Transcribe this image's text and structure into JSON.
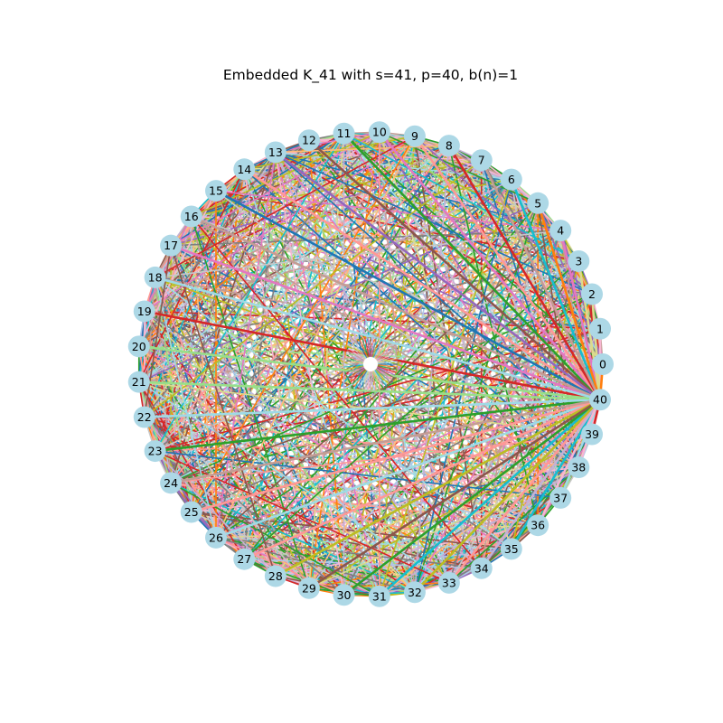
{
  "figure": {
    "title": "Embedded K_41 with s=41, p=40, b(n)=1"
  },
  "graph": {
    "type": "complete-graph",
    "node_count": 41,
    "hub_node": 40,
    "node_fill": "#add8e6",
    "edge_palette": [
      "#1f77b4",
      "#ff7f0e",
      "#2ca02c",
      "#d62728",
      "#9467bd",
      "#8c564b",
      "#e377c2",
      "#7f7f7f",
      "#bcbd22",
      "#17becf",
      "#aec7e8",
      "#ffbb78",
      "#98df8a",
      "#ff9896",
      "#c5b0d5",
      "#c49c94",
      "#f7b6d2",
      "#c7c7c7",
      "#dbdb8d",
      "#9edae5"
    ],
    "nodes": [
      "0",
      "1",
      "2",
      "3",
      "4",
      "5",
      "6",
      "7",
      "8",
      "9",
      "10",
      "11",
      "12",
      "13",
      "14",
      "15",
      "16",
      "17",
      "18",
      "19",
      "20",
      "21",
      "22",
      "23",
      "24",
      "25",
      "26",
      "27",
      "28",
      "29",
      "30",
      "31",
      "32",
      "33",
      "34",
      "35",
      "36",
      "37",
      "38",
      "39",
      "40"
    ]
  }
}
